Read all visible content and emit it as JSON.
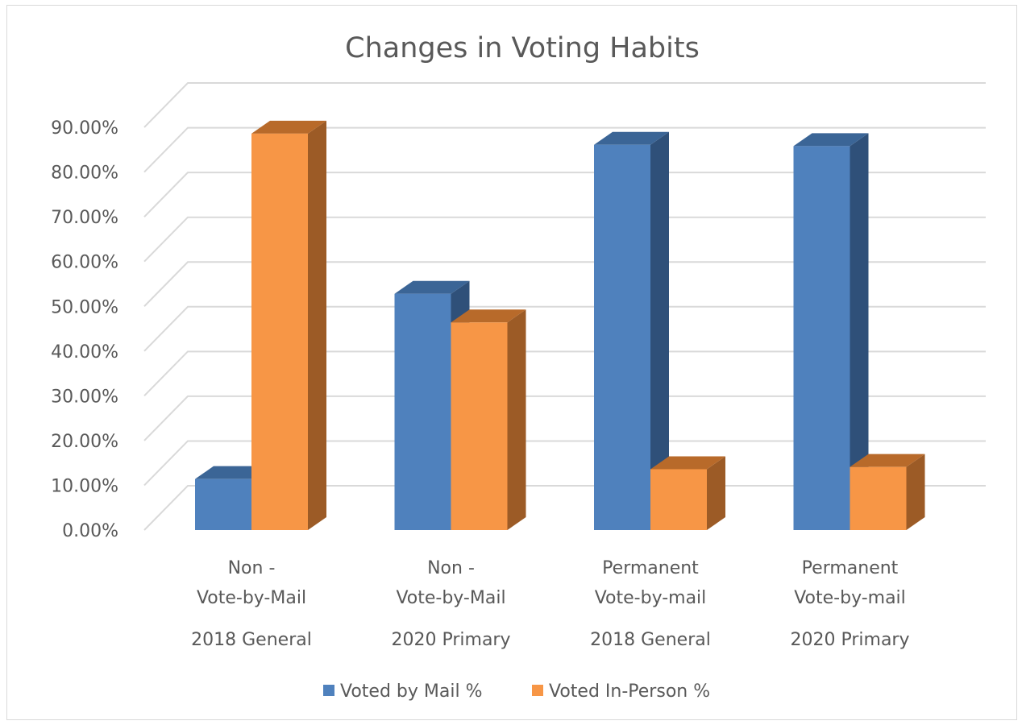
{
  "chart_data": {
    "type": "bar",
    "title": "Changes in Voting Habits",
    "xlabel": "",
    "ylabel": "",
    "ylim": [
      0,
      0.95
    ],
    "yticks": [
      "0.00%",
      "10.00%",
      "20.00%",
      "30.00%",
      "40.00%",
      "50.00%",
      "60.00%",
      "70.00%",
      "80.00%",
      "90.00%"
    ],
    "categories": [
      {
        "line1": "Non -",
        "line2": "Vote-by-Mail",
        "group": "2018 General"
      },
      {
        "line1": "Non -",
        "line2": "Vote-by-Mail",
        "group": "2020 Primary"
      },
      {
        "line1": "Permanent",
        "line2": "Vote-by-mail",
        "group": "2018 General"
      },
      {
        "line1": "Permanent",
        "line2": "Vote-by-mail",
        "group": "2020 Primary"
      }
    ],
    "series": [
      {
        "name": "Voted by Mail %",
        "values": [
          0.114,
          0.528,
          0.861,
          0.858
        ],
        "color": "#4f81bd",
        "side_color": "#2f5079",
        "top_color": "#3b6596"
      },
      {
        "name": "Voted In-Person %",
        "values": [
          0.886,
          0.464,
          0.136,
          0.141
        ],
        "color": "#f79646",
        "side_color": "#9c5b26",
        "top_color": "#b86a2a"
      }
    ],
    "grid": true,
    "legend_position": "bottom",
    "style": "3d-clustered-column"
  }
}
